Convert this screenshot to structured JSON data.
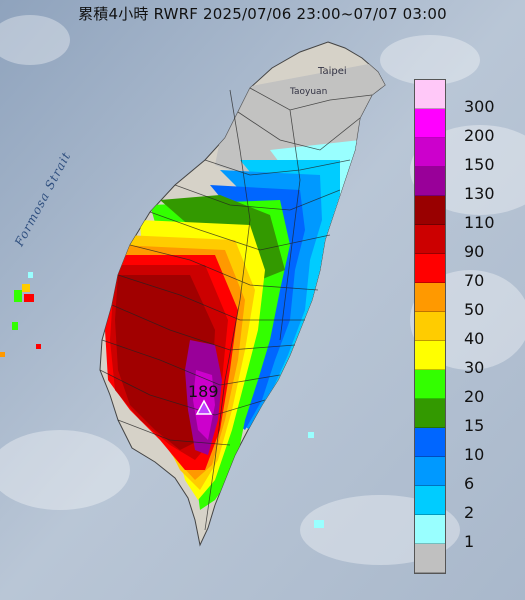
{
  "title": "累積4小時 RWRF 2025/07/06 23:00~07/07 03:00",
  "place_labels": {
    "taipei": "Taipei",
    "taoyuan": "Taoyuan",
    "strait": "Formosa Strait"
  },
  "peak_marker": {
    "value": "189",
    "icon": "triangle-icon"
  },
  "legend": {
    "items": [
      {
        "label": "300",
        "color": "#ffc8f8"
      },
      {
        "label": "200",
        "color": "#ff00ff"
      },
      {
        "label": "150",
        "color": "#cc00cc"
      },
      {
        "label": "130",
        "color": "#990099"
      },
      {
        "label": "110",
        "color": "#990000"
      },
      {
        "label": "90",
        "color": "#cc0000"
      },
      {
        "label": "70",
        "color": "#ff0000"
      },
      {
        "label": "50",
        "color": "#ff9900"
      },
      {
        "label": "40",
        "color": "#ffcc00"
      },
      {
        "label": "30",
        "color": "#ffff00"
      },
      {
        "label": "20",
        "color": "#33ff00"
      },
      {
        "label": "15",
        "color": "#339900"
      },
      {
        "label": "10",
        "color": "#0066ff"
      },
      {
        "label": "6",
        "color": "#0099ff"
      },
      {
        "label": "2",
        "color": "#00ccff"
      },
      {
        "label": "1",
        "color": "#99ffff"
      },
      {
        "label": "",
        "color": "#c0c0c0"
      }
    ]
  },
  "colors": {
    "sea": "#aab8cc",
    "land": "#d8d4cc",
    "no_rain": "#c0c0c0"
  }
}
